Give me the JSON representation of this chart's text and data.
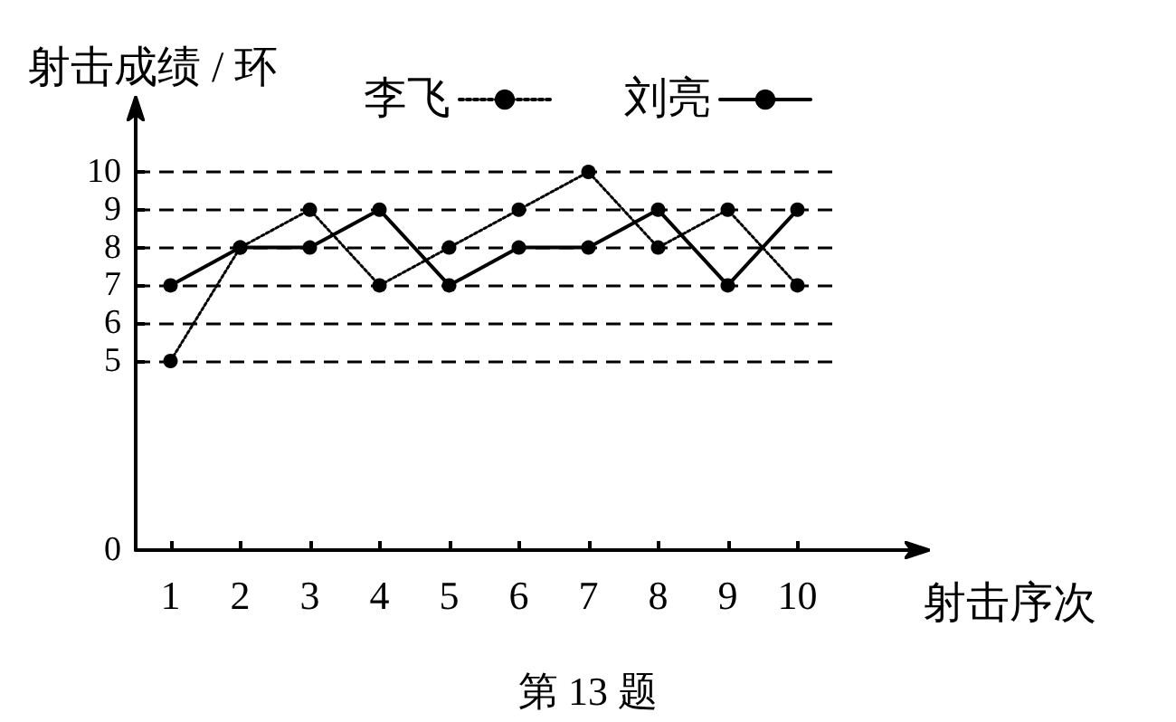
{
  "chart_data": {
    "type": "line",
    "ylabel": "射击成绩 / 环",
    "xlabel": "射击序次",
    "annotations": [
      "第 13 题"
    ],
    "categories": [
      "1",
      "2",
      "3",
      "4",
      "5",
      "6",
      "7",
      "8",
      "9",
      "10"
    ],
    "series": [
      {
        "name": "李飞",
        "color": "#000000",
        "line_style": "dotted",
        "values": [
          5,
          8,
          9,
          7,
          8,
          9,
          10,
          8,
          9,
          7
        ]
      },
      {
        "name": "刘亮",
        "color": "#000000",
        "line_style": "solid",
        "values": [
          7,
          8,
          8,
          9,
          7,
          8,
          8,
          9,
          7,
          9
        ]
      }
    ],
    "ylim": [
      0,
      10
    ],
    "yticks": [
      0,
      5,
      6,
      7,
      8,
      9,
      10
    ],
    "grid": "y",
    "legend": "top",
    "marker": "circle"
  }
}
